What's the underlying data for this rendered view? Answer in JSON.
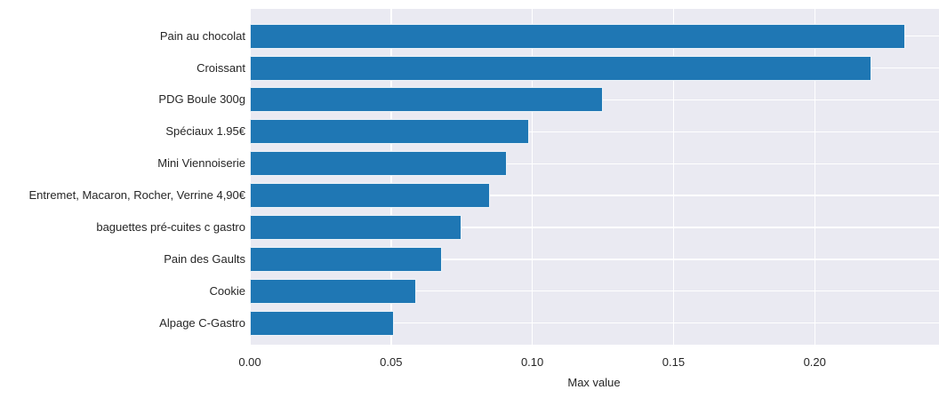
{
  "chart_data": {
    "type": "bar",
    "orientation": "horizontal",
    "title": "",
    "categories": [
      "Pain au chocolat",
      "Croissant",
      "PDG Boule 300g",
      "Spéciaux 1.95€",
      "Mini Viennoiserie",
      "Entremet, Macaron, Rocher, Verrine 4,90€",
      "baguettes pré-cuites c gastro",
      "Pain des Gaults",
      "Cookie",
      "Alpage C-Gastro"
    ],
    "values": [
      0.232,
      0.22,
      0.125,
      0.099,
      0.091,
      0.085,
      0.075,
      0.068,
      0.059,
      0.051
    ],
    "xlabel": "Max value",
    "ylabel": "",
    "xlim": [
      0,
      0.244
    ],
    "xticks": {
      "values": [
        0,
        0.05,
        0.1,
        0.15,
        0.2
      ],
      "labels": [
        "0.00",
        "0.05",
        "0.10",
        "0.15",
        "0.20"
      ]
    },
    "grid": true,
    "legend": null,
    "colors": {
      "bar": "#1f77b4",
      "bar_edge": "rgba(255,255,255,0.9)",
      "plot_bg": "#eaeaf2",
      "grid": "#ffffff",
      "text": "#262626",
      "figure_bg": "#ffffff"
    }
  }
}
